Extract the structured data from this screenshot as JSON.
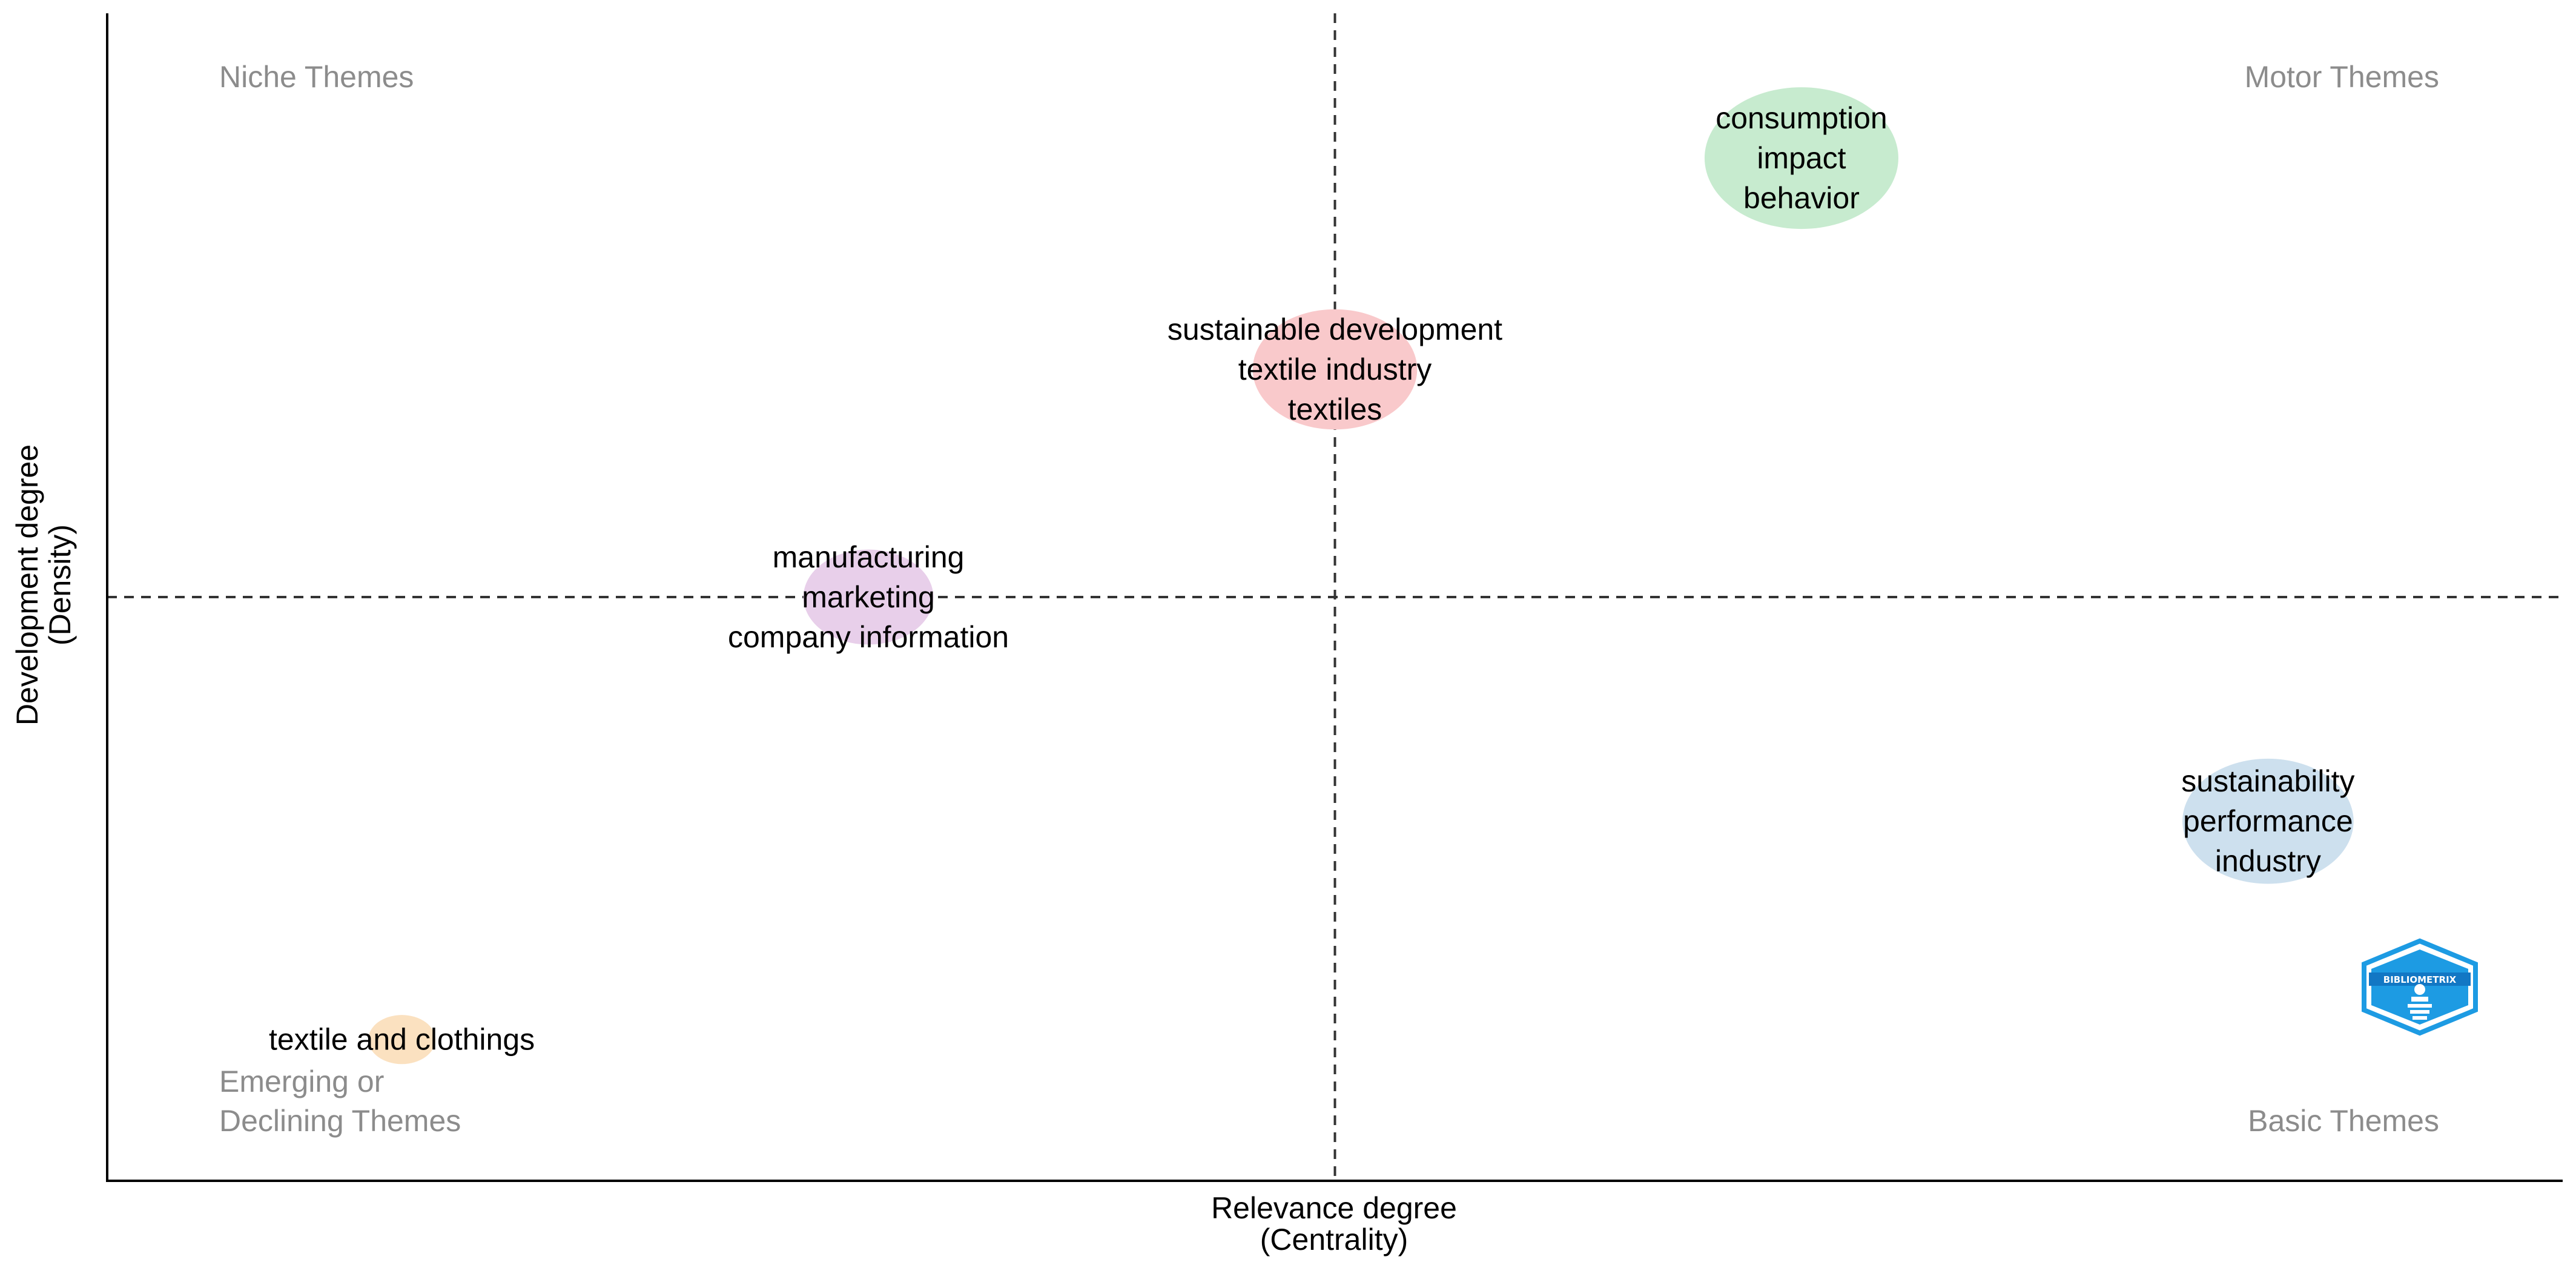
{
  "chart_data": {
    "type": "scatter",
    "title": "",
    "xlabel": [
      "Relevance degree",
      "(Centrality)"
    ],
    "ylabel": [
      "Development degree",
      "(Density)"
    ],
    "xlim": [
      0,
      100
    ],
    "ylim": [
      0,
      100
    ],
    "reference_lines": {
      "x": 50,
      "y": 50,
      "style": "dashed"
    },
    "grid": false,
    "quadrants": {
      "top_left": [
        "Niche Themes"
      ],
      "top_right": [
        "Motor Themes"
      ],
      "bottom_left": [
        "Emerging or",
        "Declining Themes"
      ],
      "bottom_right": [
        "Basic Themes"
      ]
    },
    "clusters": [
      {
        "labels": [
          "consumption",
          "impact",
          "behavior"
        ],
        "x": 69.0,
        "y": 87.6,
        "size": 1.0,
        "color": "#c7ebcf"
      },
      {
        "labels": [
          "sustainable development",
          "textile industry",
          "textiles"
        ],
        "x": 50.0,
        "y": 69.5,
        "size": 0.72,
        "color": "#f9c9cb"
      },
      {
        "labels": [
          "manufacturing",
          "marketing",
          "company information"
        ],
        "x": 31.0,
        "y": 50.0,
        "size": 0.45,
        "color": "#e8cfea"
      },
      {
        "labels": [
          "sustainability",
          "performance",
          "industry"
        ],
        "x": 88.0,
        "y": 30.8,
        "size": 0.78,
        "color": "#cde0ee"
      },
      {
        "labels": [
          "textile and clothings"
        ],
        "x": 12.0,
        "y": 12.1,
        "size": 0.12,
        "color": "#fbe1c0"
      }
    ],
    "watermark": "BIBLIOMETRIX"
  }
}
